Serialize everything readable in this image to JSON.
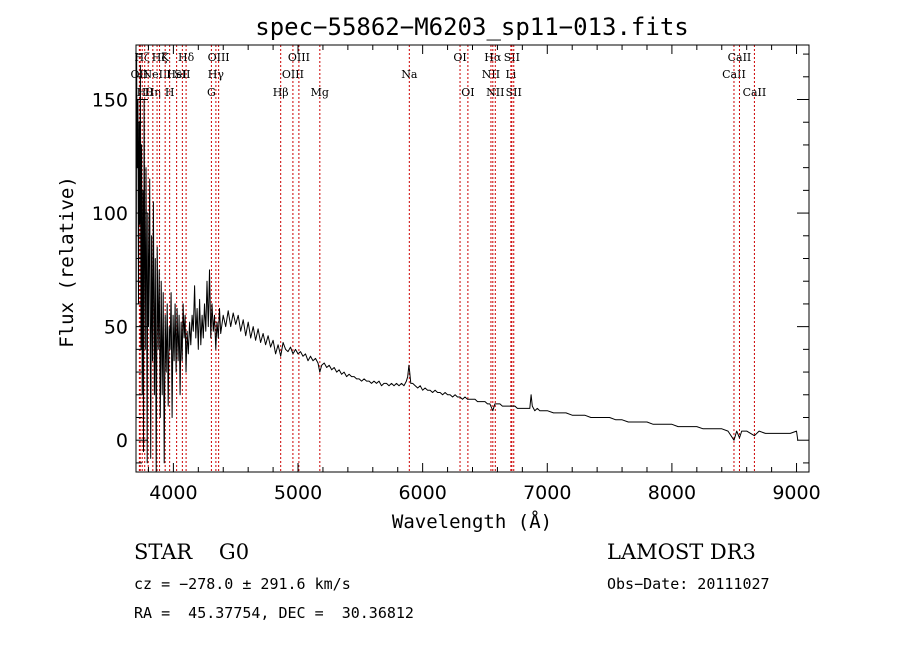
{
  "chart_data": {
    "type": "line",
    "title": "spec−55862−M6203_sp11−013.fits",
    "xlabel": "Wavelength (Å)",
    "ylabel": "Flux (relative)",
    "xlim": [
      3700,
      9100
    ],
    "ylim": [
      -14,
      174
    ],
    "x_ticks": [
      4000,
      5000,
      6000,
      7000,
      8000,
      9000
    ],
    "x_tick_labels": [
      "4000",
      "5000",
      "6000",
      "7000",
      "8000",
      "9000"
    ],
    "y_ticks": [
      0,
      50,
      100,
      150
    ],
    "y_tick_labels": [
      "0",
      "50",
      "100",
      "150"
    ],
    "series": [
      {
        "name": "flux",
        "points": [
          [
            3700,
            5
          ],
          [
            3705,
            170
          ],
          [
            3710,
            120
          ],
          [
            3715,
            150
          ],
          [
            3720,
            60
          ],
          [
            3725,
            140
          ],
          [
            3730,
            95
          ],
          [
            3735,
            165
          ],
          [
            3740,
            40
          ],
          [
            3745,
            130
          ],
          [
            3750,
            20
          ],
          [
            3755,
            110
          ],
          [
            3760,
            -5
          ],
          [
            3765,
            150
          ],
          [
            3770,
            85
          ],
          [
            3775,
            40
          ],
          [
            3780,
            120
          ],
          [
            3785,
            70
          ],
          [
            3790,
            -10
          ],
          [
            3795,
            100
          ],
          [
            3800,
            50
          ],
          [
            3810,
            115
          ],
          [
            3818,
            -8
          ],
          [
            3825,
            90
          ],
          [
            3832,
            35
          ],
          [
            3840,
            105
          ],
          [
            3848,
            20
          ],
          [
            3855,
            80
          ],
          [
            3862,
            -14
          ],
          [
            3870,
            85
          ],
          [
            3878,
            40
          ],
          [
            3886,
            75
          ],
          [
            3895,
            10
          ],
          [
            3902,
            70
          ],
          [
            3910,
            20
          ],
          [
            3918,
            65
          ],
          [
            3926,
            -10
          ],
          [
            3934,
            55
          ],
          [
            3942,
            30
          ],
          [
            3950,
            60
          ],
          [
            3958,
            15
          ],
          [
            3966,
            50
          ],
          [
            3974,
            40
          ],
          [
            3982,
            65
          ],
          [
            3990,
            10
          ],
          [
            3998,
            55
          ],
          [
            4006,
            35
          ],
          [
            4014,
            60
          ],
          [
            4022,
            30
          ],
          [
            4030,
            58
          ],
          [
            4038,
            35
          ],
          [
            4046,
            55
          ],
          [
            4054,
            20
          ],
          [
            4062,
            52
          ],
          [
            4070,
            35
          ],
          [
            4078,
            60
          ],
          [
            4086,
            45
          ],
          [
            4094,
            55
          ],
          [
            4101,
            30
          ],
          [
            4110,
            48
          ],
          [
            4120,
            38
          ],
          [
            4130,
            52
          ],
          [
            4140,
            42
          ],
          [
            4150,
            55
          ],
          [
            4160,
            48
          ],
          [
            4170,
            68
          ],
          [
            4180,
            45
          ],
          [
            4190,
            58
          ],
          [
            4200,
            40
          ],
          [
            4210,
            62
          ],
          [
            4220,
            42
          ],
          [
            4230,
            55
          ],
          [
            4240,
            45
          ],
          [
            4250,
            60
          ],
          [
            4260,
            48
          ],
          [
            4270,
            70
          ],
          [
            4280,
            50
          ],
          [
            4290,
            75
          ],
          [
            4300,
            45
          ],
          [
            4310,
            60
          ],
          [
            4320,
            48
          ],
          [
            4330,
            55
          ],
          [
            4340,
            40
          ],
          [
            4350,
            52
          ],
          [
            4360,
            45
          ],
          [
            4370,
            58
          ],
          [
            4380,
            47
          ],
          [
            4400,
            55
          ],
          [
            4420,
            50
          ],
          [
            4440,
            57
          ],
          [
            4460,
            50
          ],
          [
            4480,
            56
          ],
          [
            4500,
            51
          ],
          [
            4520,
            55
          ],
          [
            4540,
            48
          ],
          [
            4560,
            53
          ],
          [
            4580,
            46
          ],
          [
            4600,
            52
          ],
          [
            4620,
            45
          ],
          [
            4640,
            50
          ],
          [
            4660,
            44
          ],
          [
            4680,
            49
          ],
          [
            4700,
            43
          ],
          [
            4720,
            47
          ],
          [
            4740,
            42
          ],
          [
            4760,
            46
          ],
          [
            4780,
            41
          ],
          [
            4800,
            44
          ],
          [
            4820,
            38
          ],
          [
            4840,
            42
          ],
          [
            4861,
            37
          ],
          [
            4880,
            43
          ],
          [
            4900,
            40
          ],
          [
            4920,
            39
          ],
          [
            4940,
            41
          ],
          [
            4960,
            38
          ],
          [
            4980,
            40
          ],
          [
            5000,
            38
          ],
          [
            5020,
            39
          ],
          [
            5040,
            37
          ],
          [
            5060,
            38
          ],
          [
            5080,
            35
          ],
          [
            5100,
            37
          ],
          [
            5120,
            35
          ],
          [
            5140,
            36
          ],
          [
            5160,
            34
          ],
          [
            5175,
            30
          ],
          [
            5190,
            33
          ],
          [
            5210,
            34
          ],
          [
            5230,
            32
          ],
          [
            5250,
            33
          ],
          [
            5270,
            31
          ],
          [
            5290,
            32
          ],
          [
            5310,
            30
          ],
          [
            5330,
            31
          ],
          [
            5350,
            29
          ],
          [
            5370,
            30
          ],
          [
            5390,
            28
          ],
          [
            5410,
            29
          ],
          [
            5430,
            28
          ],
          [
            5450,
            28
          ],
          [
            5470,
            27
          ],
          [
            5490,
            27
          ],
          [
            5510,
            26
          ],
          [
            5530,
            27
          ],
          [
            5550,
            26
          ],
          [
            5570,
            26
          ],
          [
            5590,
            25
          ],
          [
            5610,
            26
          ],
          [
            5630,
            25
          ],
          [
            5650,
            26
          ],
          [
            5670,
            24
          ],
          [
            5690,
            25
          ],
          [
            5710,
            25
          ],
          [
            5730,
            24
          ],
          [
            5750,
            25
          ],
          [
            5770,
            24
          ],
          [
            5790,
            25
          ],
          [
            5810,
            24
          ],
          [
            5830,
            25
          ],
          [
            5850,
            24
          ],
          [
            5870,
            26
          ],
          [
            5880,
            28
          ],
          [
            5890,
            33
          ],
          [
            5896,
            30
          ],
          [
            5905,
            25
          ],
          [
            5920,
            25
          ],
          [
            5940,
            24
          ],
          [
            5960,
            23
          ],
          [
            5980,
            24
          ],
          [
            6000,
            22
          ],
          [
            6020,
            23
          ],
          [
            6040,
            22
          ],
          [
            6060,
            22
          ],
          [
            6080,
            21
          ],
          [
            6100,
            22
          ],
          [
            6120,
            21
          ],
          [
            6140,
            21
          ],
          [
            6160,
            20
          ],
          [
            6180,
            21
          ],
          [
            6200,
            20
          ],
          [
            6220,
            20
          ],
          [
            6240,
            19
          ],
          [
            6260,
            20
          ],
          [
            6280,
            19
          ],
          [
            6300,
            19
          ],
          [
            6320,
            18
          ],
          [
            6340,
            19
          ],
          [
            6360,
            18
          ],
          [
            6380,
            18
          ],
          [
            6400,
            18
          ],
          [
            6420,
            18
          ],
          [
            6440,
            17
          ],
          [
            6460,
            17
          ],
          [
            6480,
            17
          ],
          [
            6500,
            17
          ],
          [
            6520,
            16
          ],
          [
            6540,
            16
          ],
          [
            6563,
            13
          ],
          [
            6580,
            16
          ],
          [
            6600,
            16
          ],
          [
            6620,
            16
          ],
          [
            6640,
            15
          ],
          [
            6660,
            15
          ],
          [
            6680,
            15
          ],
          [
            6700,
            15
          ],
          [
            6720,
            15
          ],
          [
            6740,
            15
          ],
          [
            6760,
            14
          ],
          [
            6780,
            14
          ],
          [
            6800,
            14
          ],
          [
            6820,
            14
          ],
          [
            6840,
            14
          ],
          [
            6860,
            14
          ],
          [
            6870,
            20
          ],
          [
            6880,
            15
          ],
          [
            6900,
            13
          ],
          [
            6920,
            14
          ],
          [
            6940,
            13
          ],
          [
            6960,
            13
          ],
          [
            6980,
            13
          ],
          [
            7000,
            13
          ],
          [
            7050,
            12
          ],
          [
            7100,
            12
          ],
          [
            7150,
            12
          ],
          [
            7200,
            11
          ],
          [
            7250,
            11
          ],
          [
            7300,
            11
          ],
          [
            7350,
            10
          ],
          [
            7400,
            10
          ],
          [
            7450,
            10
          ],
          [
            7500,
            10
          ],
          [
            7550,
            9
          ],
          [
            7600,
            9
          ],
          [
            7650,
            8
          ],
          [
            7700,
            8
          ],
          [
            7750,
            8
          ],
          [
            7800,
            8
          ],
          [
            7850,
            7
          ],
          [
            7900,
            7
          ],
          [
            7950,
            7
          ],
          [
            8000,
            7
          ],
          [
            8050,
            6
          ],
          [
            8100,
            6
          ],
          [
            8150,
            6
          ],
          [
            8200,
            6
          ],
          [
            8250,
            5
          ],
          [
            8300,
            5
          ],
          [
            8350,
            5
          ],
          [
            8400,
            5
          ],
          [
            8450,
            4
          ],
          [
            8498,
            0
          ],
          [
            8520,
            4
          ],
          [
            8542,
            1
          ],
          [
            8560,
            4
          ],
          [
            8600,
            4
          ],
          [
            8662,
            2
          ],
          [
            8700,
            4
          ],
          [
            8750,
            3
          ],
          [
            8800,
            3
          ],
          [
            8850,
            3
          ],
          [
            8900,
            3
          ],
          [
            8950,
            3
          ],
          [
            9000,
            4
          ],
          [
            9010,
            0
          ]
        ]
      }
    ],
    "line_markers": [
      {
        "wavelength": 3727,
        "label": "OII",
        "row": 1
      },
      {
        "wavelength": 3734,
        "label": "",
        "row": 0
      },
      {
        "wavelength": 3750,
        "label": "Hζ",
        "row": 0
      },
      {
        "wavelength": 3770,
        "label": "Hθ",
        "row": 2
      },
      {
        "wavelength": 3798,
        "label": "",
        "row": 0
      },
      {
        "wavelength": 3835,
        "label": "Hη",
        "row": 2
      },
      {
        "wavelength": 3869,
        "label": "NeIII",
        "row": 1
      },
      {
        "wavelength": 3889,
        "label": "Hζ",
        "row": 0
      },
      {
        "wavelength": 3934,
        "label": "K",
        "row": 0
      },
      {
        "wavelength": 3970,
        "label": "H",
        "row": 2
      },
      {
        "wavelength": 4026,
        "label": "HeI",
        "row": 1
      },
      {
        "wavelength": 4072,
        "label": "SII",
        "row": 1
      },
      {
        "wavelength": 4102,
        "label": "Hδ",
        "row": 0
      },
      {
        "wavelength": 4305,
        "label": "G",
        "row": 2
      },
      {
        "wavelength": 4341,
        "label": "Hγ",
        "row": 1
      },
      {
        "wavelength": 4363,
        "label": "OIII",
        "row": 0
      },
      {
        "wavelength": 4861,
        "label": "Hβ",
        "row": 2
      },
      {
        "wavelength": 4959,
        "label": "OIII",
        "row": 1
      },
      {
        "wavelength": 5007,
        "label": "OIII",
        "row": 0
      },
      {
        "wavelength": 5175,
        "label": "Mg",
        "row": 2
      },
      {
        "wavelength": 5893,
        "label": "Na",
        "row": 1
      },
      {
        "wavelength": 6300,
        "label": "OI",
        "row": 0
      },
      {
        "wavelength": 6363,
        "label": "OI",
        "row": 2
      },
      {
        "wavelength": 6548,
        "label": "NII",
        "row": 1
      },
      {
        "wavelength": 6563,
        "label": "Hα",
        "row": 0
      },
      {
        "wavelength": 6583,
        "label": "NII",
        "row": 2
      },
      {
        "wavelength": 6708,
        "label": "Li",
        "row": 1
      },
      {
        "wavelength": 6716,
        "label": "SII",
        "row": 0
      },
      {
        "wavelength": 6731,
        "label": "SII",
        "row": 2
      },
      {
        "wavelength": 8498,
        "label": "CaII",
        "row": 1
      },
      {
        "wavelength": 8542,
        "label": "CaII",
        "row": 0
      },
      {
        "wavelength": 8662,
        "label": "CaII",
        "row": 2
      }
    ]
  },
  "footer": {
    "class_text": "STAR    G0",
    "survey": "LAMOST DR3",
    "cz": "cz = −278.0 ± 291.6 km/s",
    "obs_date": "Obs−Date: 20111027",
    "coords": "RA =  45.37754, DEC =  30.36812"
  },
  "colors": {
    "spectrum": "#000000",
    "marker": "#cc0000",
    "axis": "#000000",
    "background": "#ffffff"
  }
}
